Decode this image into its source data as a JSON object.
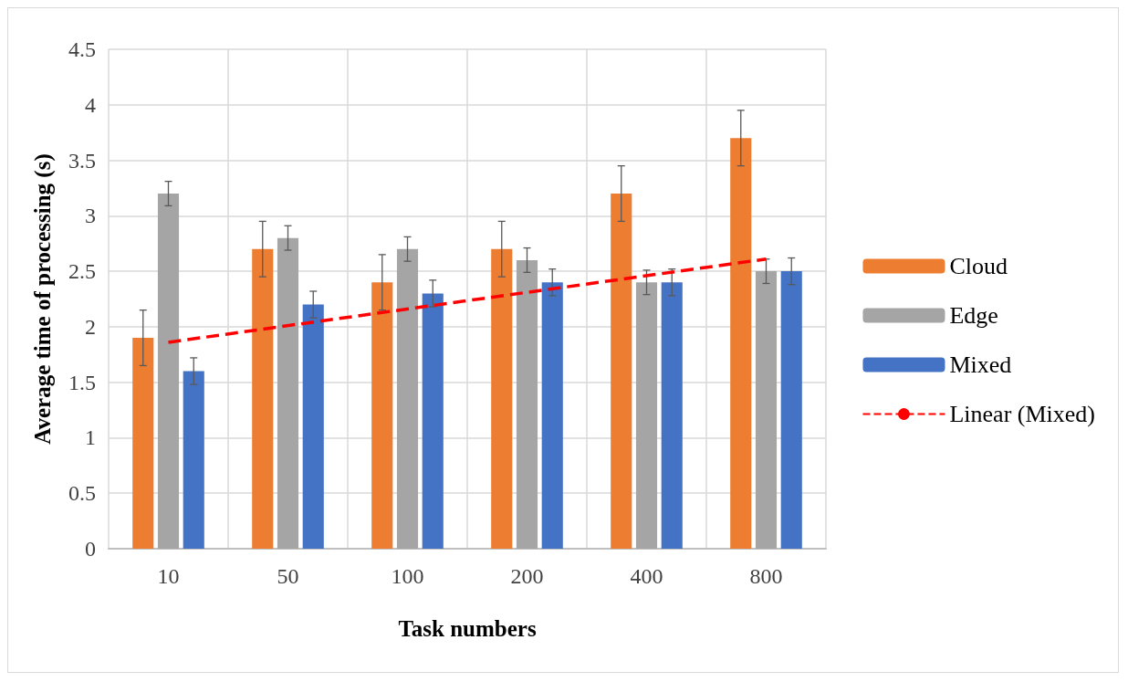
{
  "chart_data": {
    "type": "bar",
    "xlabel": "Task numbers",
    "ylabel": "Average time of processing (s)",
    "categories": [
      "10",
      "50",
      "100",
      "200",
      "400",
      "800"
    ],
    "series": [
      {
        "name": "Cloud",
        "color": "#ed7d31",
        "values": [
          1.9,
          2.7,
          2.4,
          2.7,
          3.2,
          3.7
        ],
        "errors": [
          0.25,
          0.25,
          0.25,
          0.25,
          0.25,
          0.25
        ]
      },
      {
        "name": "Edge",
        "color": "#a5a5a5",
        "values": [
          3.2,
          2.8,
          2.7,
          2.6,
          2.4,
          2.5
        ],
        "errors": [
          0.11,
          0.11,
          0.11,
          0.11,
          0.11,
          0.11
        ]
      },
      {
        "name": "Mixed",
        "color": "#4472c4",
        "values": [
          1.6,
          2.2,
          2.3,
          2.4,
          2.4,
          2.5
        ],
        "errors": [
          0.12,
          0.12,
          0.12,
          0.12,
          0.12,
          0.12
        ]
      },
      {
        "name": "Linear (Mixed)",
        "type": "line",
        "color": "#ff0000",
        "line_style": "dashed",
        "marker": "none",
        "x": [
          "10",
          "800"
        ],
        "values": [
          1.86,
          2.61
        ]
      }
    ],
    "ylim": [
      0,
      4.5
    ],
    "yticks": [
      0,
      0.5,
      1,
      1.5,
      2,
      2.5,
      3,
      3.5,
      4,
      4.5
    ],
    "grid": true,
    "legend": "right"
  }
}
